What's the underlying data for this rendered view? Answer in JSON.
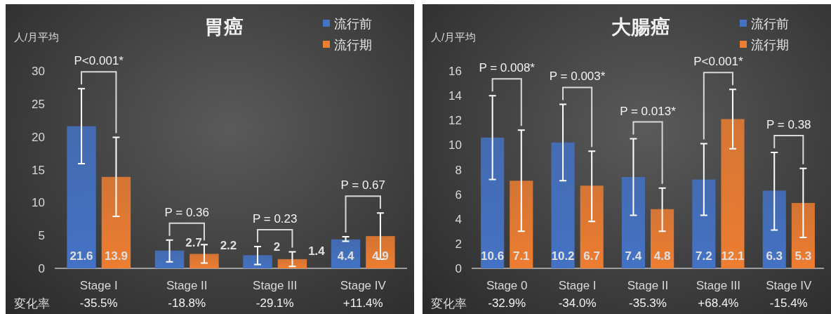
{
  "chart_data": [
    {
      "type": "bar",
      "title": "胃癌",
      "ylabel": "人/月平均",
      "categories": [
        "Stage I",
        "Stage II",
        "Stage III",
        "Stage IV"
      ],
      "series": [
        {
          "name": "流行前",
          "color": "#4472c4",
          "values": [
            21.6,
            2.7,
            2,
            4.4
          ],
          "errors": [
            [
              15.9,
              27.3
            ],
            [
              1.0,
              4.3
            ],
            [
              0.6,
              3.3
            ],
            [
              4.1,
              4.8
            ]
          ]
        },
        {
          "name": "流行期",
          "color": "#ed7d31",
          "values": [
            13.9,
            2.2,
            1.4,
            4.9
          ],
          "errors": [
            [
              7.9,
              19.9
            ],
            [
              0.8,
              3.6
            ],
            [
              0.3,
              2.5
            ],
            [
              1.4,
              8.4
            ]
          ]
        }
      ],
      "ylim": [
        0,
        30
      ],
      "yticks": [
        0,
        5,
        10,
        15,
        20,
        25,
        30
      ],
      "data_labels": true,
      "legend": "top right",
      "grid": false,
      "annotations": [
        "P<0.001*",
        "P = 0.36",
        "P = 0.23",
        "P = 0.67",
        "変化率",
        "-35.5%",
        "-18.8%",
        "-29.1%",
        "+11.4%"
      ]
    },
    {
      "type": "bar",
      "title": "大腸癌",
      "ylabel": "人/月平均",
      "categories": [
        "Stage 0",
        "Stage I",
        "Stage II",
        "Stage III",
        "Stage IV"
      ],
      "series": [
        {
          "name": "流行前",
          "color": "#4472c4",
          "values": [
            10.6,
            10.2,
            7.4,
            7.2,
            6.3
          ],
          "errors": [
            [
              7.2,
              14.0
            ],
            [
              7.1,
              13.3
            ],
            [
              4.3,
              10.5
            ],
            [
              4.3,
              10.1
            ],
            [
              3.1,
              9.4
            ]
          ]
        },
        {
          "name": "流行期",
          "color": "#ed7d31",
          "values": [
            7.1,
            6.7,
            4.8,
            12.1,
            5.3
          ],
          "errors": [
            [
              3.0,
              11.2
            ],
            [
              3.8,
              9.5
            ],
            [
              3.0,
              6.5
            ],
            [
              9.7,
              14.5
            ],
            [
              2.5,
              8.1
            ]
          ]
        }
      ],
      "ylim": [
        0,
        16
      ],
      "yticks": [
        0,
        2,
        4,
        6,
        8,
        10,
        12,
        14,
        16
      ],
      "data_labels": true,
      "legend": "top right",
      "grid": false,
      "annotations": [
        "P = 0.008*",
        "P = 0.003*",
        "P = 0.013*",
        "P<0.001*",
        "P = 0.38",
        "変化率",
        "-32.9%",
        "-34.0%",
        "-35.3%",
        "+68.4%",
        "-15.4%"
      ]
    }
  ]
}
